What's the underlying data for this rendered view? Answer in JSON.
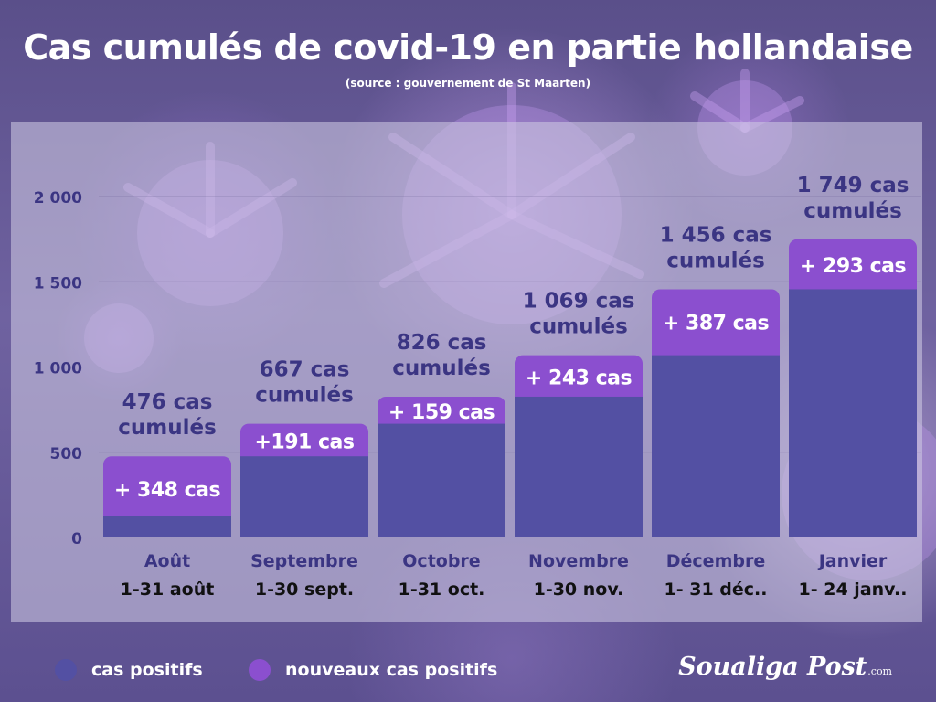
{
  "header": {
    "title": "Cas cumulés de covid-19 en partie hollandaise",
    "subtitle": "(source : gouvernement de St Maarten)"
  },
  "chart_data": {
    "type": "bar",
    "stacked": true,
    "categories": [
      "Août",
      "Septembre",
      "Octobre",
      "Novembre",
      "Décembre",
      "Janvier"
    ],
    "periods": [
      "1-31 août",
      "1-30 sept.",
      "1-31 oct.",
      "1-30 nov.",
      "1- 31 déc..",
      "1- 24 janv.."
    ],
    "series": [
      {
        "name": "cas positifs",
        "color": "#5350a3",
        "values": [
          128,
          476,
          667,
          826,
          1069,
          1456
        ]
      },
      {
        "name": "nouveaux cas positifs",
        "color": "#8b4fcf",
        "values": [
          348,
          191,
          159,
          243,
          387,
          293
        ]
      }
    ],
    "total_labels": [
      [
        "476 cas",
        "cumulés"
      ],
      [
        "667 cas",
        "cumulés"
      ],
      [
        "826 cas",
        "cumulés"
      ],
      [
        "1 069 cas",
        "cumulés"
      ],
      [
        "1 456 cas",
        "cumulés"
      ],
      [
        "1 749 cas",
        "cumulés"
      ]
    ],
    "new_labels": [
      "+ 348 cas",
      "+191 cas",
      "+ 159 cas",
      "+ 243 cas",
      "+ 387 cas",
      "+ 293 cas"
    ],
    "yticks": [
      0,
      500,
      1000,
      1500,
      2000
    ],
    "ytick_labels": [
      "0",
      "500",
      "1 000",
      "1 500",
      "2 000"
    ],
    "ylim": [
      0,
      2000
    ],
    "grid": true,
    "legend_placement": "bottom-left"
  },
  "legend": {
    "items": [
      {
        "label": "cas positifs",
        "color": "#5350a3"
      },
      {
        "label": "nouveaux cas positifs",
        "color": "#8b4fcf"
      }
    ]
  },
  "brand": {
    "name": "Soualiga Post",
    "domain": ".com"
  },
  "colors": {
    "label_text": "#3b3583",
    "axis_text": "#3b3583",
    "month_text": "#3b3583",
    "period_text": "#111111"
  }
}
